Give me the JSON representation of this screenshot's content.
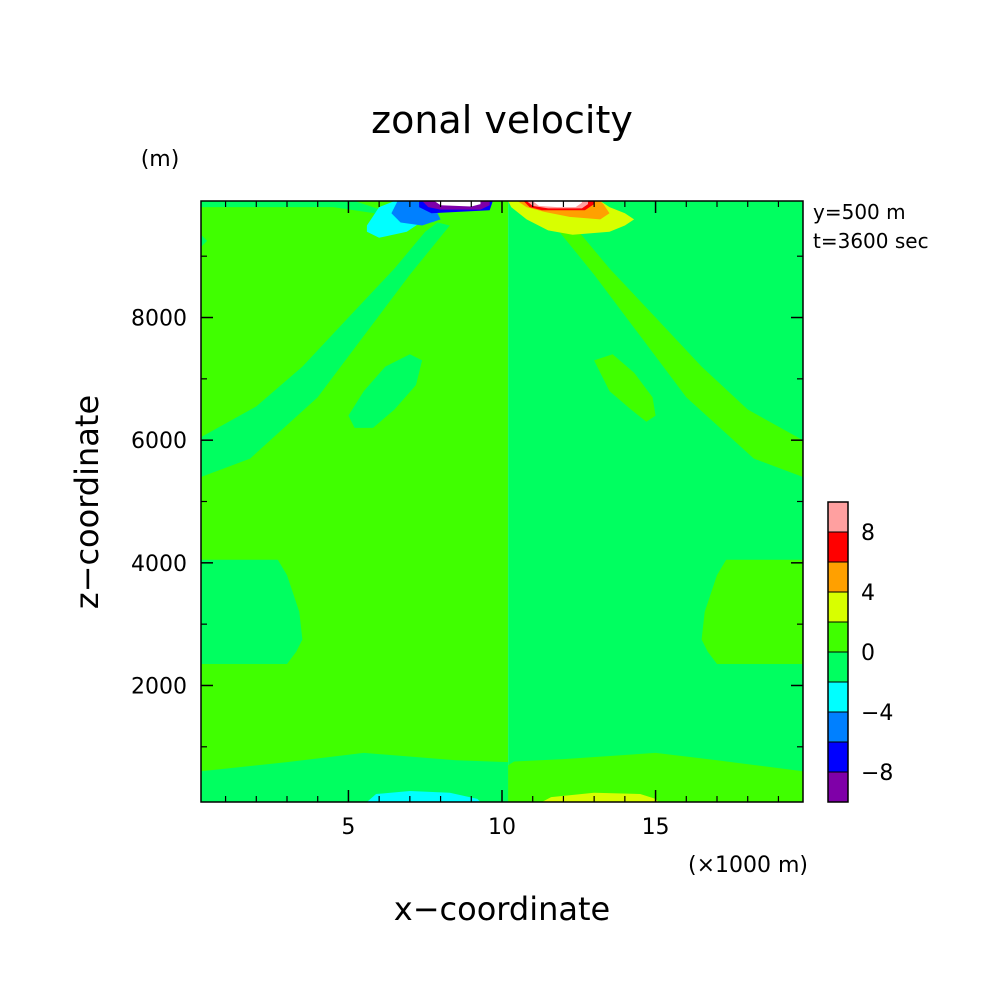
{
  "chart_data": {
    "type": "heatmap",
    "title": "zonal velocity",
    "xlabel": "x−coordinate",
    "ylabel": "z−coordinate",
    "x_unit": "(×1000 m)",
    "y_unit": "(m)",
    "annotations": [
      "y=500 m",
      "t=3600 sec"
    ],
    "x_ticks": [
      {
        "value": 5,
        "label": "5"
      },
      {
        "value": 10,
        "label": "10"
      },
      {
        "value": 15,
        "label": "15"
      }
    ],
    "y_ticks": [
      {
        "value": 2000,
        "label": "2000"
      },
      {
        "value": 4000,
        "label": "4000"
      },
      {
        "value": 6000,
        "label": "6000"
      },
      {
        "value": 8000,
        "label": "8000"
      }
    ],
    "xlim": [
      0.2,
      19.8
    ],
    "ylim": [
      100,
      9900
    ],
    "colorbar": {
      "levels": [
        -10,
        -8,
        -6,
        -4,
        -2,
        0,
        2,
        4,
        6,
        8,
        10
      ],
      "colors": [
        "#7f00a8",
        "#0000ff",
        "#0080ff",
        "#00ffff",
        "#00ff60",
        "#40ff00",
        "#d8ff00",
        "#ffa000",
        "#ff0000",
        "#ffa0a0"
      ],
      "tick_labels": [
        {
          "value": -8,
          "label": "−8"
        },
        {
          "value": -4,
          "label": "−4"
        },
        {
          "value": 0,
          "label": "0"
        },
        {
          "value": 4,
          "label": "4"
        },
        {
          "value": 8,
          "label": "8"
        }
      ]
    },
    "background_level": "0 to 2 (light green) left half, -2 to 0 (green) right half",
    "regions": [
      {
        "name": "left background",
        "range": [
          0,
          2
        ],
        "color": "#40ff00",
        "polygon": [
          [
            0.2,
            100
          ],
          [
            10.2,
            100
          ],
          [
            10.2,
            9900
          ],
          [
            0.2,
            9900
          ]
        ]
      },
      {
        "name": "right background",
        "range": [
          -2,
          0
        ],
        "color": "#00ff60",
        "polygon": [
          [
            10.2,
            100
          ],
          [
            19.8,
            100
          ],
          [
            19.8,
            9900
          ],
          [
            10.2,
            9900
          ]
        ]
      },
      {
        "name": "left upper wedge",
        "range": [
          -2,
          0
        ],
        "color": "#00ff60",
        "polygon": [
          [
            0.2,
            9900
          ],
          [
            0.2,
            9350
          ],
          [
            0.4,
            9250
          ],
          [
            0.2,
            9150
          ],
          [
            0.2,
            6050
          ],
          [
            2.0,
            6550
          ],
          [
            3.5,
            7200
          ],
          [
            5.0,
            8000
          ],
          [
            6.5,
            8800
          ],
          [
            7.5,
            9400
          ],
          [
            7.9,
            9550
          ],
          [
            8.3,
            9500
          ],
          [
            7.0,
            8700
          ],
          [
            5.5,
            7700
          ],
          [
            4.0,
            6700
          ],
          [
            1.8,
            5700
          ],
          [
            0.2,
            5400
          ]
        ]
      },
      {
        "name": "left top band",
        "range": [
          -2,
          0
        ],
        "color": "#00ff60",
        "polygon": [
          [
            0.2,
            9900
          ],
          [
            5.2,
            9900
          ],
          [
            6.4,
            9700
          ],
          [
            7.8,
            9600
          ],
          [
            7.8,
            9550
          ],
          [
            6.5,
            9650
          ],
          [
            4.5,
            9800
          ],
          [
            0.2,
            9800
          ]
        ]
      },
      {
        "name": "left mid blob",
        "range": [
          -2,
          0
        ],
        "color": "#00ff60",
        "polygon": [
          [
            5.2,
            6200
          ],
          [
            5.0,
            6400
          ],
          [
            5.5,
            6800
          ],
          [
            6.2,
            7200
          ],
          [
            7.0,
            7400
          ],
          [
            7.4,
            7300
          ],
          [
            7.2,
            6900
          ],
          [
            6.5,
            6500
          ],
          [
            5.8,
            6200
          ]
        ]
      },
      {
        "name": "left side bulge",
        "range": [
          -2,
          0
        ],
        "color": "#00ff60",
        "polygon": [
          [
            0.2,
            4050
          ],
          [
            2.7,
            4050
          ],
          [
            3.0,
            3800
          ],
          [
            3.4,
            3200
          ],
          [
            3.5,
            2750
          ],
          [
            3.3,
            2550
          ],
          [
            3.0,
            2350
          ],
          [
            0.2,
            2350
          ]
        ]
      },
      {
        "name": "left lower band",
        "range": [
          -2,
          0
        ],
        "color": "#00ff60",
        "polygon": [
          [
            0.2,
            100
          ],
          [
            10.2,
            100
          ],
          [
            10.2,
            750
          ],
          [
            8.5,
            780
          ],
          [
            5.5,
            900
          ],
          [
            3.0,
            750
          ],
          [
            0.2,
            600
          ]
        ]
      },
      {
        "name": "center notch",
        "range": [
          0,
          2
        ],
        "color": "#40ff00",
        "polygon": [
          [
            9.3,
            8500
          ],
          [
            9.5,
            8800
          ],
          [
            10.0,
            9100
          ],
          [
            10.2,
            9200
          ],
          [
            10.2,
            8500
          ],
          [
            10.0,
            8450
          ]
        ]
      },
      {
        "name": "right upper wedge",
        "range": [
          0,
          2
        ],
        "color": "#40ff00",
        "polygon": [
          [
            19.8,
            9900
          ],
          [
            19.8,
            6000
          ],
          [
            18.0,
            6500
          ],
          [
            16.5,
            7200
          ],
          [
            15.0,
            8000
          ],
          [
            13.5,
            8800
          ],
          [
            12.5,
            9400
          ],
          [
            12.1,
            9550
          ],
          [
            11.7,
            9500
          ],
          [
            13.0,
            8700
          ],
          [
            14.5,
            7700
          ],
          [
            16.0,
            6700
          ],
          [
            18.2,
            5700
          ],
          [
            19.8,
            5400
          ]
        ]
      },
      {
        "name": "right mid blob",
        "range": [
          0,
          2
        ],
        "color": "#40ff00",
        "polygon": [
          [
            13.0,
            7300
          ],
          [
            13.5,
            6800
          ],
          [
            14.2,
            6500
          ],
          [
            14.7,
            6300
          ],
          [
            15.0,
            6400
          ],
          [
            14.9,
            6700
          ],
          [
            14.3,
            7100
          ],
          [
            13.6,
            7400
          ]
        ]
      },
      {
        "name": "right side bulge",
        "range": [
          0,
          2
        ],
        "color": "#40ff00",
        "polygon": [
          [
            19.8,
            4050
          ],
          [
            17.3,
            4050
          ],
          [
            17.0,
            3800
          ],
          [
            16.6,
            3200
          ],
          [
            16.5,
            2750
          ],
          [
            16.7,
            2550
          ],
          [
            17.0,
            2350
          ],
          [
            19.8,
            2350
          ]
        ]
      },
      {
        "name": "right lower band",
        "range": [
          0,
          2
        ],
        "color": "#40ff00",
        "polygon": [
          [
            10.2,
            100
          ],
          [
            19.8,
            100
          ],
          [
            19.8,
            600
          ],
          [
            17.0,
            780
          ],
          [
            15.0,
            900
          ],
          [
            12.0,
            800
          ],
          [
            10.4,
            760
          ],
          [
            10.2,
            700
          ]
        ]
      },
      {
        "name": "bottom cyan lens",
        "range": [
          -4,
          -2
        ],
        "color": "#00ffff",
        "polygon": [
          [
            5.6,
            100
          ],
          [
            5.9,
            230
          ],
          [
            7.0,
            280
          ],
          [
            8.3,
            250
          ],
          [
            9.2,
            150
          ],
          [
            9.3,
            100
          ]
        ]
      },
      {
        "name": "bottom yellow lens",
        "range": [
          2,
          4
        ],
        "color": "#d8ff00",
        "polygon": [
          [
            11.3,
            100
          ],
          [
            11.6,
            180
          ],
          [
            13.0,
            250
          ],
          [
            14.5,
            230
          ],
          [
            15.0,
            150
          ],
          [
            15.1,
            100
          ]
        ]
      },
      {
        "name": "top left cyan",
        "range": [
          -4,
          -2
        ],
        "color": "#00ffff",
        "polygon": [
          [
            5.6,
            9500
          ],
          [
            5.6,
            9400
          ],
          [
            6.0,
            9300
          ],
          [
            6.9,
            9400
          ],
          [
            7.5,
            9600
          ],
          [
            7.2,
            9800
          ],
          [
            6.5,
            9900
          ],
          [
            6.0,
            9800
          ]
        ]
      },
      {
        "name": "top left blue",
        "range": [
          -6,
          -4
        ],
        "color": "#0080ff",
        "polygon": [
          [
            6.4,
            9700
          ],
          [
            6.7,
            9550
          ],
          [
            7.4,
            9500
          ],
          [
            8.0,
            9600
          ],
          [
            7.8,
            9800
          ],
          [
            7.2,
            9900
          ],
          [
            6.6,
            9900
          ]
        ]
      },
      {
        "name": "top left deep blue",
        "range": [
          -8,
          -6
        ],
        "color": "#0000ff",
        "polygon": [
          [
            7.3,
            9900
          ],
          [
            7.3,
            9800
          ],
          [
            7.7,
            9700
          ],
          [
            9.6,
            9750
          ],
          [
            9.7,
            9900
          ]
        ]
      },
      {
        "name": "top left purple",
        "range": [
          -10,
          -8
        ],
        "color": "#7f00a8",
        "polygon": [
          [
            7.4,
            9900
          ],
          [
            7.6,
            9800
          ],
          [
            8.0,
            9760
          ],
          [
            9.3,
            9760
          ],
          [
            9.6,
            9830
          ],
          [
            9.6,
            9900
          ]
        ]
      },
      {
        "name": "top left white core",
        "range": [
          -12,
          -10
        ],
        "color": "#ffffff",
        "polygon": [
          [
            7.8,
            9900
          ],
          [
            8.0,
            9830
          ],
          [
            9.0,
            9810
          ],
          [
            9.3,
            9850
          ],
          [
            9.3,
            9900
          ]
        ]
      },
      {
        "name": "top right yellow",
        "range": [
          2,
          4
        ],
        "color": "#d8ff00",
        "polygon": [
          [
            10.2,
            9900
          ],
          [
            10.3,
            9800
          ],
          [
            10.8,
            9600
          ],
          [
            11.5,
            9420
          ],
          [
            12.3,
            9350
          ],
          [
            13.5,
            9400
          ],
          [
            14.0,
            9500
          ],
          [
            14.3,
            9600
          ],
          [
            14.0,
            9700
          ],
          [
            13.5,
            9800
          ],
          [
            13.2,
            9900
          ]
        ]
      },
      {
        "name": "top right orange",
        "range": [
          4,
          6
        ],
        "color": "#ffa000",
        "polygon": [
          [
            10.5,
            9900
          ],
          [
            10.8,
            9800
          ],
          [
            11.4,
            9720
          ],
          [
            12.2,
            9640
          ],
          [
            13.2,
            9600
          ],
          [
            13.5,
            9700
          ],
          [
            13.3,
            9850
          ],
          [
            13.2,
            9900
          ]
        ]
      },
      {
        "name": "top right red",
        "range": [
          6,
          8
        ],
        "color": "#ff0000",
        "polygon": [
          [
            10.7,
            9900
          ],
          [
            10.9,
            9800
          ],
          [
            11.3,
            9750
          ],
          [
            12.7,
            9750
          ],
          [
            13.0,
            9850
          ],
          [
            13.0,
            9900
          ]
        ]
      },
      {
        "name": "top right pink",
        "range": [
          8,
          10
        ],
        "color": "#ffa0a0",
        "polygon": [
          [
            10.8,
            9900
          ],
          [
            11.0,
            9820
          ],
          [
            11.5,
            9780
          ],
          [
            12.6,
            9780
          ],
          [
            12.8,
            9850
          ],
          [
            12.8,
            9900
          ]
        ]
      },
      {
        "name": "top right white core",
        "range": [
          10,
          12
        ],
        "color": "#ffffff",
        "polygon": [
          [
            11.0,
            9900
          ],
          [
            11.2,
            9820
          ],
          [
            11.8,
            9800
          ],
          [
            12.4,
            9800
          ],
          [
            12.6,
            9870
          ],
          [
            12.6,
            9900
          ]
        ]
      }
    ]
  }
}
